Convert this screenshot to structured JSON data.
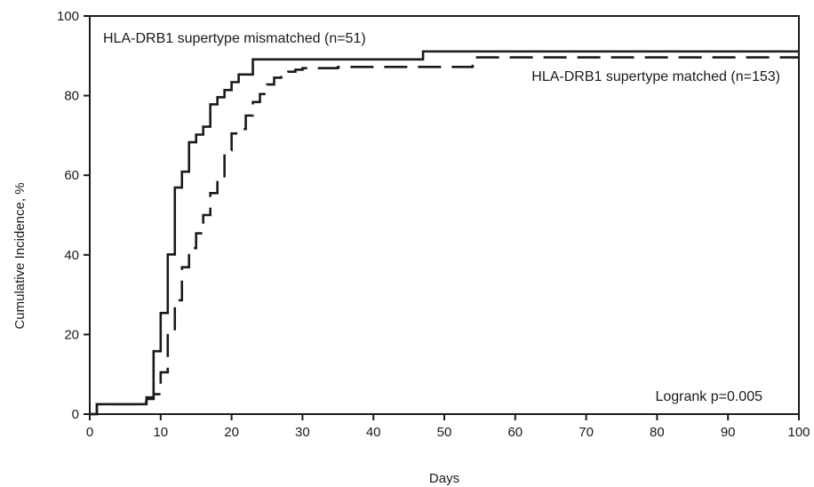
{
  "chart_data": {
    "type": "line",
    "title": "",
    "xlabel": "Days",
    "ylabel": "Cumulative Incidence, %",
    "xlim": [
      0,
      100
    ],
    "ylim": [
      0,
      100
    ],
    "x_ticks": [
      0,
      10,
      20,
      30,
      40,
      50,
      60,
      70,
      80,
      90,
      100
    ],
    "y_ticks": [
      0,
      20,
      40,
      60,
      80,
      100
    ],
    "grid": false,
    "legend": "none",
    "series": [
      {
        "name": "HLA-DRB1 supertype mismatched (n=51)",
        "style": "solid",
        "color": "#1a1a1a",
        "x": [
          0,
          1,
          8,
          9,
          10,
          11,
          12,
          13,
          14,
          15,
          16,
          17,
          18,
          19,
          20,
          21,
          23,
          47,
          100
        ],
        "y": [
          0,
          2.5,
          4.2,
          15.8,
          25.4,
          40.1,
          56.9,
          60.9,
          68.3,
          70.2,
          72.2,
          77.8,
          79.6,
          81.4,
          83.4,
          85.3,
          89.1,
          91.1,
          91.1
        ]
      },
      {
        "name": "HLA-DRB1 supertype matched (n=153)",
        "style": "dashed",
        "color": "#1a1a1a",
        "x": [
          0,
          1,
          7,
          8,
          9,
          10,
          11,
          12,
          13,
          14,
          15,
          16,
          17,
          18,
          19,
          20,
          21,
          22,
          23,
          24,
          25,
          26,
          27,
          28,
          29,
          30,
          33,
          35,
          54,
          100
        ],
        "y": [
          0,
          2.5,
          3.1,
          3.8,
          5.0,
          10.5,
          20.5,
          28.6,
          36.9,
          41.7,
          45.4,
          50.0,
          55.5,
          59.0,
          66.3,
          70.5,
          71.6,
          75.0,
          78.4,
          80.4,
          82.8,
          84.5,
          85.3,
          86.0,
          86.5,
          86.9,
          86.9,
          87.2,
          89.6,
          89.6
        ]
      }
    ],
    "annotations": {
      "mismatched_label": "HLA-DRB1 supertype mismatched (n=51)",
      "matched_label": "HLA-DRB1 supertype matched (n=153)",
      "logrank": "Logrank p=0.005"
    }
  }
}
